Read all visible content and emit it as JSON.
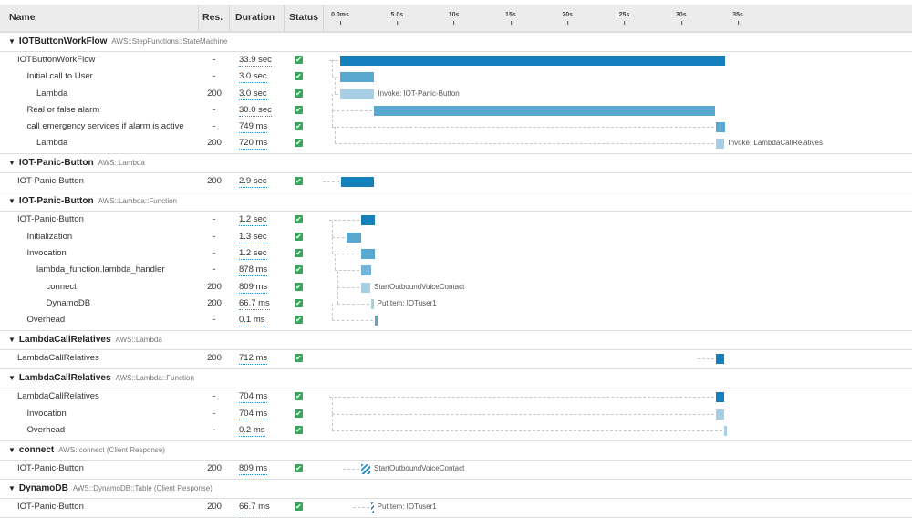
{
  "columns": {
    "name": "Name",
    "res": "Res.",
    "duration": "Duration",
    "status": "Status"
  },
  "axis": {
    "unit": "seconds",
    "ticks": [
      {
        "v": 0,
        "label": "0.0ms"
      },
      {
        "v": 5,
        "label": "5.0s"
      },
      {
        "v": 10,
        "label": "10s"
      },
      {
        "v": 15,
        "label": "15s"
      },
      {
        "v": 20,
        "label": "20s"
      },
      {
        "v": 25,
        "label": "25s"
      },
      {
        "v": 30,
        "label": "30s"
      },
      {
        "v": 35,
        "label": "35s"
      }
    ]
  },
  "colors": {
    "dark": "#1580bb",
    "mid": "#5aa7cf",
    "light": "#a6cfe5",
    "ok": "#3aa55d",
    "hatch": "#2a8fd1"
  },
  "status_icon": "check-square-icon",
  "groups": [
    {
      "name": "IOTButtonWorkFlow",
      "type": "AWS::StepFunctions::StateMachine",
      "rows": [
        {
          "name": "IOTButtonWorkFlow",
          "level": 0,
          "res": "-",
          "duration": "33.9 sec",
          "start": 0,
          "len": 33.9,
          "shade": "dark"
        },
        {
          "name": "Initial call to User",
          "level": 1,
          "res": "-",
          "duration": "3.0 sec",
          "start": 0,
          "len": 3.0,
          "shade": "mid"
        },
        {
          "name": "Lambda",
          "level": 2,
          "res": "200",
          "duration": "3.0 sec",
          "start": 0,
          "len": 3.0,
          "shade": "light",
          "label": "Invoke: IOT-Panic-Button"
        },
        {
          "name": "Real or false alarm",
          "level": 1,
          "res": "-",
          "duration": "30.0 sec",
          "start": 3.0,
          "len": 30.0,
          "shade": "mid"
        },
        {
          "name": "call emergency services if alarm is active",
          "level": 1,
          "res": "-",
          "duration": "749 ms",
          "start": 33.1,
          "len": 0.749,
          "shade": "mid"
        },
        {
          "name": "Lambda",
          "level": 2,
          "res": "200",
          "duration": "720 ms",
          "start": 33.1,
          "len": 0.72,
          "shade": "light",
          "label": "Invoke: LambdaCallRelatives"
        }
      ]
    },
    {
      "name": "IOT-Panic-Button",
      "type": "AWS::Lambda",
      "rows": [
        {
          "name": "IOT-Panic-Button",
          "level": 0,
          "res": "200",
          "duration": "2.9 sec",
          "start": 0.1,
          "len": 2.9,
          "shade": "dark"
        }
      ]
    },
    {
      "name": "IOT-Panic-Button",
      "type": "AWS::Lambda::Function",
      "rows": [
        {
          "name": "IOT-Panic-Button",
          "level": 0,
          "res": "-",
          "duration": "1.2 sec",
          "start": 1.85,
          "len": 1.2,
          "shade": "dark"
        },
        {
          "name": "Initialization",
          "level": 1,
          "res": "-",
          "duration": "1.3 sec",
          "start": 0.55,
          "len": 1.3,
          "shade": "mid"
        },
        {
          "name": "Invocation",
          "level": 1,
          "res": "-",
          "duration": "1.2 sec",
          "start": 1.85,
          "len": 1.2,
          "shade": "mid"
        },
        {
          "name": "lambda_function.lambda_handler",
          "level": 2,
          "res": "-",
          "duration": "878 ms",
          "start": 1.85,
          "len": 0.878,
          "shade": "mid2"
        },
        {
          "name": "connect",
          "level": 3,
          "res": "200",
          "duration": "809 ms",
          "start": 1.85,
          "len": 0.809,
          "shade": "light",
          "label": "StartOutboundVoiceContact"
        },
        {
          "name": "DynamoDB",
          "level": 3,
          "res": "200",
          "duration": "66.7 ms",
          "start": 2.7,
          "len": 0.0667,
          "shade": "light",
          "label": "PutItem: IOTuser1"
        },
        {
          "name": "Overhead",
          "level": 1,
          "res": "-",
          "duration": "0.1 ms",
          "start": 3.05,
          "len": 0.0001,
          "shade": "mid"
        }
      ]
    },
    {
      "name": "LambdaCallRelatives",
      "type": "AWS::Lambda",
      "rows": [
        {
          "name": "LambdaCallRelatives",
          "level": 0,
          "res": "200",
          "duration": "712 ms",
          "start": 33.05,
          "len": 0.712,
          "shade": "dark"
        }
      ]
    },
    {
      "name": "LambdaCallRelatives",
      "type": "AWS::Lambda::Function",
      "rows": [
        {
          "name": "LambdaCallRelatives",
          "level": 0,
          "res": "-",
          "duration": "704 ms",
          "start": 33.05,
          "len": 0.704,
          "shade": "dark"
        },
        {
          "name": "Invocation",
          "level": 1,
          "res": "-",
          "duration": "704 ms",
          "start": 33.05,
          "len": 0.704,
          "shade": "light"
        },
        {
          "name": "Overhead",
          "level": 1,
          "res": "-",
          "duration": "0.2 ms",
          "start": 33.75,
          "len": 0.0002,
          "shade": "light"
        }
      ]
    },
    {
      "name": "connect",
      "type": "AWS::connect (Client Response)",
      "rows": [
        {
          "name": "IOT-Panic-Button",
          "level": 0,
          "res": "200",
          "duration": "809 ms",
          "start": 1.85,
          "len": 0.809,
          "shade": "hatch",
          "label": "StartOutboundVoiceContact"
        }
      ]
    },
    {
      "name": "DynamoDB",
      "type": "AWS::DynamoDB::Table (Client Response)",
      "rows": [
        {
          "name": "IOT-Panic-Button",
          "level": 0,
          "res": "200",
          "duration": "66.7 ms",
          "start": 2.7,
          "len": 0.0667,
          "shade": "hatch",
          "label": "PutItem: IOTuser1"
        }
      ]
    }
  ]
}
